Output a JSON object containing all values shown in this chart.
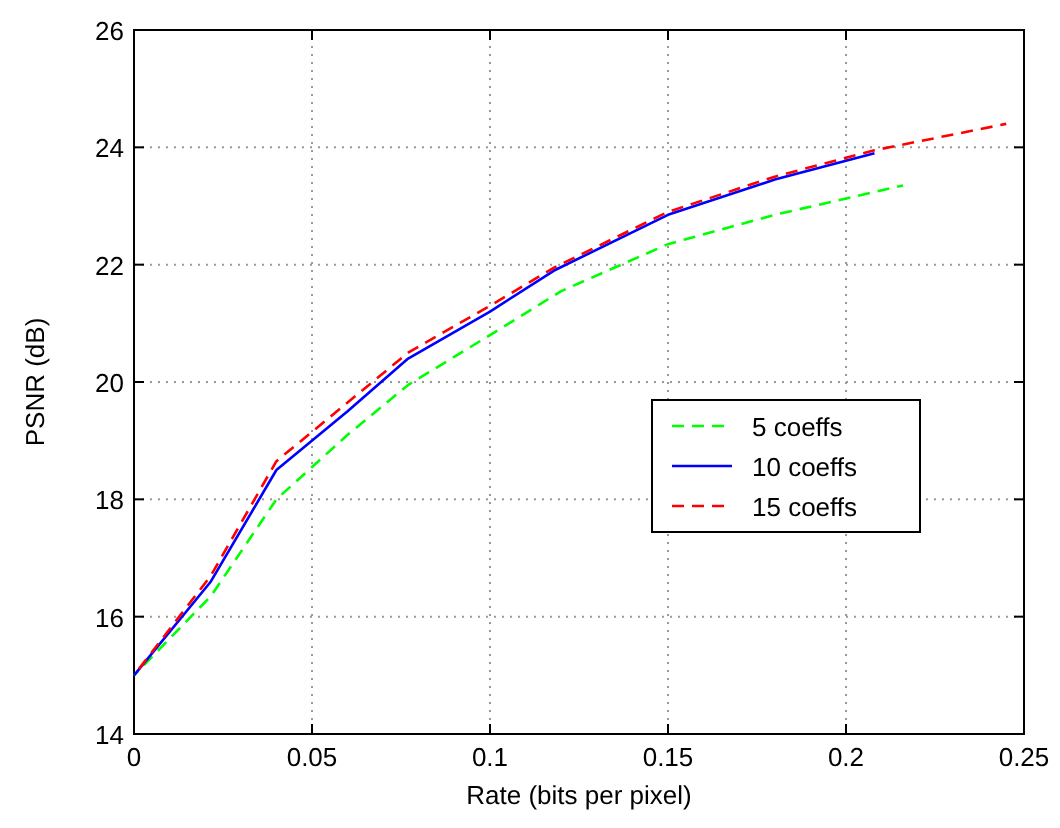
{
  "chart_data": {
    "type": "line",
    "xlabel": "Rate (bits per pixel)",
    "ylabel": "PSNR (dB)",
    "xlim": [
      0,
      0.25
    ],
    "ylim": [
      14,
      26
    ],
    "xticks": [
      0,
      0.05,
      0.1,
      0.15,
      0.2,
      0.25
    ],
    "yticks": [
      14,
      16,
      18,
      20,
      22,
      24,
      26
    ],
    "grid": true,
    "legend": "right",
    "series": [
      {
        "name": "5 coeffs",
        "color": "#00ff00",
        "line_style": "dashed",
        "x": [
          0,
          0.0216,
          0.04,
          0.06,
          0.077,
          0.1,
          0.12,
          0.15,
          0.18,
          0.216
        ],
        "values": [
          15,
          16.35,
          18.0,
          19.1,
          19.95,
          20.8,
          21.55,
          22.35,
          22.85,
          23.35
        ]
      },
      {
        "name": "10 coeffs",
        "color": "#0000ff",
        "line_style": "solid",
        "x": [
          0,
          0.0216,
          0.04,
          0.06,
          0.077,
          0.1,
          0.118,
          0.15,
          0.18,
          0.208
        ],
        "values": [
          15,
          16.6,
          18.5,
          19.5,
          20.4,
          21.2,
          21.9,
          22.85,
          23.45,
          23.9
        ]
      },
      {
        "name": "15 coeffs",
        "color": "#ff0000",
        "line_style": "dashed",
        "x": [
          0,
          0.0216,
          0.04,
          0.06,
          0.077,
          0.1,
          0.118,
          0.15,
          0.18,
          0.208,
          0.245
        ],
        "values": [
          15,
          16.7,
          18.65,
          19.65,
          20.5,
          21.3,
          21.95,
          22.9,
          23.5,
          23.95,
          24.4
        ]
      }
    ]
  }
}
